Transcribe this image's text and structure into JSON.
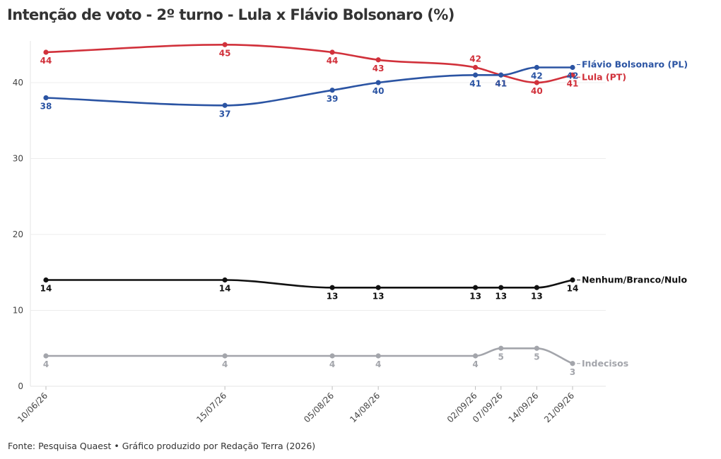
{
  "title": "Intenção de voto - 2º turno - Lula x Flávio Bolsonaro (%)",
  "footer": "Fonte: Pesquisa Quaest • Gráfico produzido por Redação Terra (2026)",
  "chart_data": {
    "type": "line",
    "title": "Intenção de voto - 2º turno - Lula x Flávio Bolsonaro (%)",
    "xlabel": "",
    "ylabel": "",
    "ylim": [
      0,
      45
    ],
    "yticks": [
      0,
      10,
      20,
      30,
      40
    ],
    "grid": true,
    "legend": "line-end labels",
    "x": [
      "10/06/26",
      "15/07/26",
      "05/08/26",
      "14/08/26",
      "02/09/26",
      "07/09/26",
      "14/09/26",
      "21/09/26"
    ],
    "series": [
      {
        "name": "Lula (PT)",
        "color": "#d1313b",
        "values": [
          44,
          45,
          44,
          43,
          42,
          41,
          40,
          41
        ]
      },
      {
        "name": "Flávio Bolsonaro (PL)",
        "color": "#2b54a3",
        "values": [
          38,
          37,
          39,
          40,
          41,
          41,
          42,
          42
        ]
      },
      {
        "name": "Nenhum/Branco/Nulo",
        "color": "#111111",
        "values": [
          14,
          14,
          13,
          13,
          13,
          13,
          13,
          14
        ]
      },
      {
        "name": "Indecisos",
        "color": "#a3a5ab",
        "values": [
          4,
          4,
          4,
          4,
          4,
          5,
          5,
          3
        ]
      }
    ]
  }
}
